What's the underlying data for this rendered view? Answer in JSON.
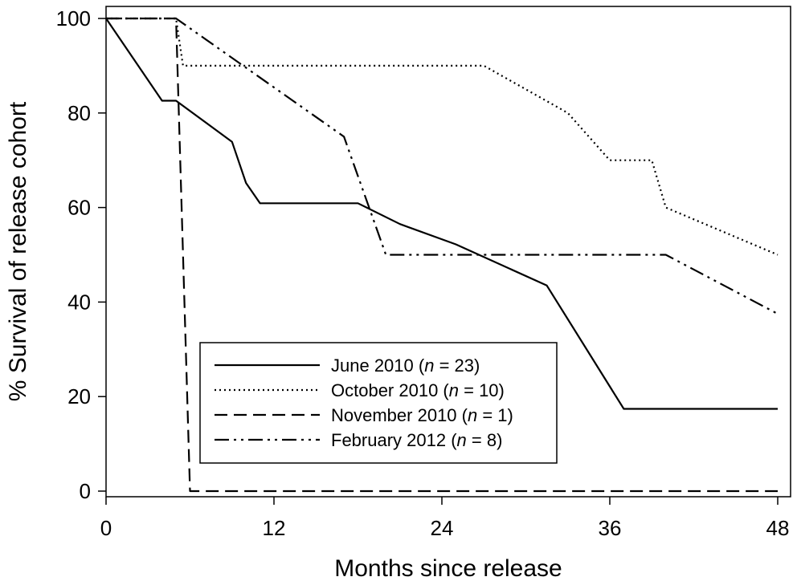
{
  "chart_data": {
    "type": "line",
    "xlabel": "Months since release",
    "ylabel": "% Survival of release cohort",
    "xlim": [
      0,
      48
    ],
    "ylim": [
      0,
      100
    ],
    "xticks": [
      0,
      12,
      24,
      36,
      48
    ],
    "yticks": [
      0,
      20,
      40,
      60,
      80,
      100
    ],
    "grid": false,
    "legend_position": "lower-center",
    "series": [
      {
        "name": "June 2010 (n = 23)",
        "legend_prefix": "June 2010 (",
        "legend_n": "n",
        "legend_suffix": " = 23)",
        "style": "solid",
        "x": [
          0,
          4,
          5,
          9,
          10,
          11,
          18,
          21,
          25,
          31.5,
          37,
          48
        ],
        "y": [
          100,
          82.6,
          82.6,
          73.9,
          65.2,
          60.9,
          60.9,
          56.5,
          52.2,
          43.5,
          17.4,
          17.4
        ]
      },
      {
        "name": "October 2010 (n = 10)",
        "legend_prefix": "October 2010 (",
        "legend_n": "n",
        "legend_suffix": " = 10)",
        "style": "dotted",
        "x": [
          0,
          5,
          5.5,
          27,
          33,
          36,
          39,
          40,
          48
        ],
        "y": [
          100,
          100,
          90,
          90,
          80,
          70,
          70,
          60,
          50
        ]
      },
      {
        "name": "November 2010 (n = 1)",
        "legend_prefix": "November 2010 (",
        "legend_n": "n",
        "legend_suffix": " = 1)",
        "style": "dashed",
        "x": [
          0,
          5,
          6,
          48
        ],
        "y": [
          100,
          100,
          0,
          0
        ]
      },
      {
        "name": "February 2012 (n = 8)",
        "legend_prefix": "February 2012 (",
        "legend_n": "n",
        "legend_suffix": " = 8)",
        "style": "dash-dot-dot",
        "x": [
          0,
          5,
          17,
          20,
          40,
          48
        ],
        "y": [
          100,
          100,
          75,
          50,
          50,
          37.5
        ]
      }
    ]
  }
}
